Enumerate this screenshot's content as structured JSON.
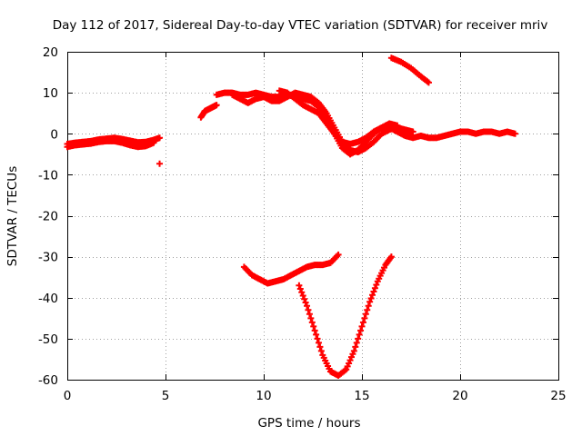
{
  "chart_data": {
    "type": "scatter",
    "title": "Day 112 of 2017, Sidereal Day-to-day VTEC variation (SDTVAR) for receiver mriv",
    "xlabel": "GPS time / hours",
    "ylabel": "SDTVAR / TECUs",
    "xlim": [
      0,
      25
    ],
    "ylim": [
      -60,
      20
    ],
    "xticks": [
      "0",
      "5",
      "10",
      "15",
      "20",
      "25"
    ],
    "yticks": [
      "-60",
      "-50",
      "-40",
      "-30",
      "-20",
      "-10",
      "0",
      "10",
      "20"
    ],
    "grid": true,
    "marker": "+",
    "color": "#ff0000",
    "series": [
      {
        "name": "trace-1",
        "x": [
          0.0,
          0.4,
          0.8,
          1.2,
          1.6,
          2.0,
          2.4,
          2.8,
          3.2,
          3.6,
          4.0,
          4.4,
          4.7
        ],
        "y": [
          -2.5,
          -2.2,
          -2.0,
          -1.8,
          -1.4,
          -1.2,
          -1.0,
          -1.3,
          -1.7,
          -2.1,
          -2.0,
          -1.5,
          -1.0
        ]
      },
      {
        "name": "trace-2",
        "x": [
          0.0,
          0.4,
          0.8,
          1.2,
          1.6,
          2.0,
          2.4,
          2.8,
          3.2,
          3.6,
          4.0,
          4.4
        ],
        "y": [
          -3.2,
          -2.8,
          -2.6,
          -2.4,
          -2.0,
          -1.8,
          -1.8,
          -2.2,
          -2.8,
          -3.2,
          -3.0,
          -2.2
        ]
      },
      {
        "name": "trace-3",
        "x": [
          4.7
        ],
        "y": [
          -7.3
        ]
      },
      {
        "name": "trace-4",
        "x": [
          6.8,
          7.0,
          7.2,
          7.4,
          7.6
        ],
        "y": [
          4.0,
          5.5,
          6.0,
          6.5,
          7.0
        ]
      },
      {
        "name": "trace-5",
        "x": [
          7.6,
          8.0,
          8.4,
          8.8,
          9.2,
          9.6,
          10.0,
          10.4,
          10.8,
          11.2,
          11.6,
          12.0,
          12.4,
          12.8,
          13.2,
          13.6,
          14.0,
          14.4,
          14.8,
          15.2,
          15.6,
          16.0,
          16.4,
          16.8
        ],
        "y": [
          9.5,
          10.0,
          10.0,
          9.5,
          9.5,
          10.0,
          9.5,
          9.0,
          9.0,
          9.5,
          9.0,
          8.5,
          8.0,
          6.5,
          3.5,
          0.0,
          -2.0,
          -2.5,
          -2.0,
          -1.0,
          0.5,
          1.5,
          2.5,
          2.0
        ]
      },
      {
        "name": "trace-6",
        "x": [
          8.4,
          8.8,
          9.2,
          9.6,
          10.0,
          10.4,
          10.8,
          11.2,
          11.6,
          12.0,
          12.4,
          12.8,
          13.2,
          13.6,
          14.0,
          14.4,
          14.8,
          15.2,
          15.6,
          16.0,
          16.4,
          16.8,
          17.2,
          17.6
        ],
        "y": [
          9.5,
          8.5,
          7.5,
          8.5,
          9.0,
          8.0,
          8.0,
          9.0,
          10.0,
          9.5,
          9.0,
          7.5,
          5.0,
          1.5,
          -2.0,
          -4.0,
          -4.5,
          -3.5,
          -2.0,
          0.0,
          1.0,
          1.5,
          1.0,
          0.5
        ]
      },
      {
        "name": "trace-7",
        "x": [
          10.8,
          11.2,
          11.6,
          12.0,
          12.4,
          12.8,
          13.2,
          13.6,
          14.0,
          14.4,
          14.8,
          15.2,
          15.6,
          16.0,
          16.4,
          16.8,
          17.2,
          17.6,
          18.0,
          18.4,
          18.8,
          19.2,
          19.6,
          20.0,
          20.4,
          20.8,
          21.2,
          21.6,
          22.0,
          22.4,
          22.8
        ],
        "y": [
          10.5,
          10.0,
          8.5,
          7.0,
          6.0,
          5.0,
          2.5,
          0.0,
          -3.5,
          -5.0,
          -4.0,
          -2.0,
          0.0,
          1.5,
          1.5,
          0.5,
          -0.5,
          -1.0,
          -0.5,
          -1.0,
          -1.0,
          -0.5,
          0.0,
          0.5,
          0.5,
          0.0,
          0.5,
          0.5,
          0.0,
          0.5,
          0.0
        ]
      },
      {
        "name": "trace-8",
        "x": [
          16.5,
          17.0,
          17.5,
          18.0,
          18.4
        ],
        "y": [
          18.5,
          17.5,
          16.0,
          14.0,
          12.5
        ]
      },
      {
        "name": "trace-9",
        "x": [
          9.0,
          9.4,
          9.8,
          10.2,
          10.6,
          11.0,
          11.4,
          11.8,
          12.2,
          12.6,
          13.0,
          13.4,
          13.8
        ],
        "y": [
          -32.5,
          -34.5,
          -35.5,
          -36.5,
          -36.0,
          -35.5,
          -34.5,
          -33.5,
          -32.5,
          -32.0,
          -32.0,
          -31.5,
          -29.5
        ]
      },
      {
        "name": "trace-10",
        "x": [
          11.8,
          12.2,
          12.6,
          13.0,
          13.4,
          13.8,
          14.2,
          14.6,
          15.0,
          15.4,
          15.8,
          16.2,
          16.5
        ],
        "y": [
          -37.0,
          -42.0,
          -48.0,
          -54.0,
          -58.0,
          -59.0,
          -57.5,
          -53.0,
          -47.0,
          -41.0,
          -36.0,
          -32.0,
          -30.0
        ]
      }
    ]
  }
}
